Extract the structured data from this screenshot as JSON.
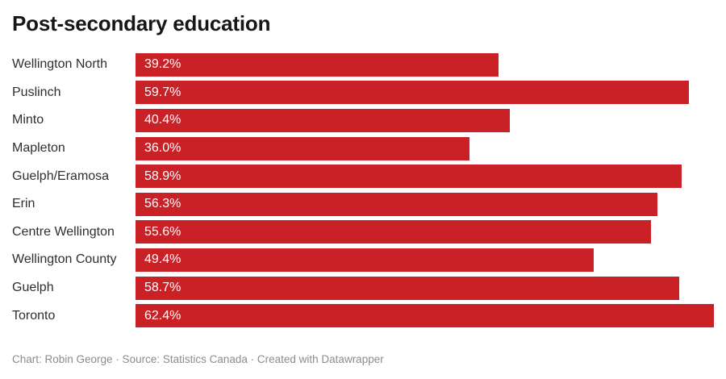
{
  "title": "Post-secondary education",
  "chart_data": {
    "type": "bar",
    "orientation": "horizontal",
    "title": "Post-secondary education",
    "xlabel": "",
    "ylabel": "",
    "unit": "%",
    "xlim": [
      0,
      62.4
    ],
    "grid": false,
    "legend": false,
    "value_labels_position": "inside-start",
    "categories": [
      "Wellington North",
      "Puslinch",
      "Minto",
      "Mapleton",
      "Guelph/Eramosa",
      "Erin",
      "Centre Wellington",
      "Wellington County",
      "Guelph",
      "Toronto"
    ],
    "values": [
      39.2,
      59.7,
      40.4,
      36.0,
      58.9,
      56.3,
      55.6,
      49.4,
      58.7,
      62.4
    ],
    "value_labels": [
      "39.2%",
      "59.7%",
      "40.4%",
      "36.0%",
      "58.9%",
      "56.3%",
      "55.6%",
      "49.4%",
      "58.7%",
      "62.4%"
    ]
  },
  "footer": {
    "text": "Chart: Robin George · Source: Statistics Canada · Created with Datawrapper"
  },
  "colors": {
    "bar": "#c92126",
    "title": "#161616",
    "category_label": "#2e2e2e",
    "value_label": "#ffffff",
    "footer": "#8b8b8b",
    "background": "#ffffff"
  }
}
